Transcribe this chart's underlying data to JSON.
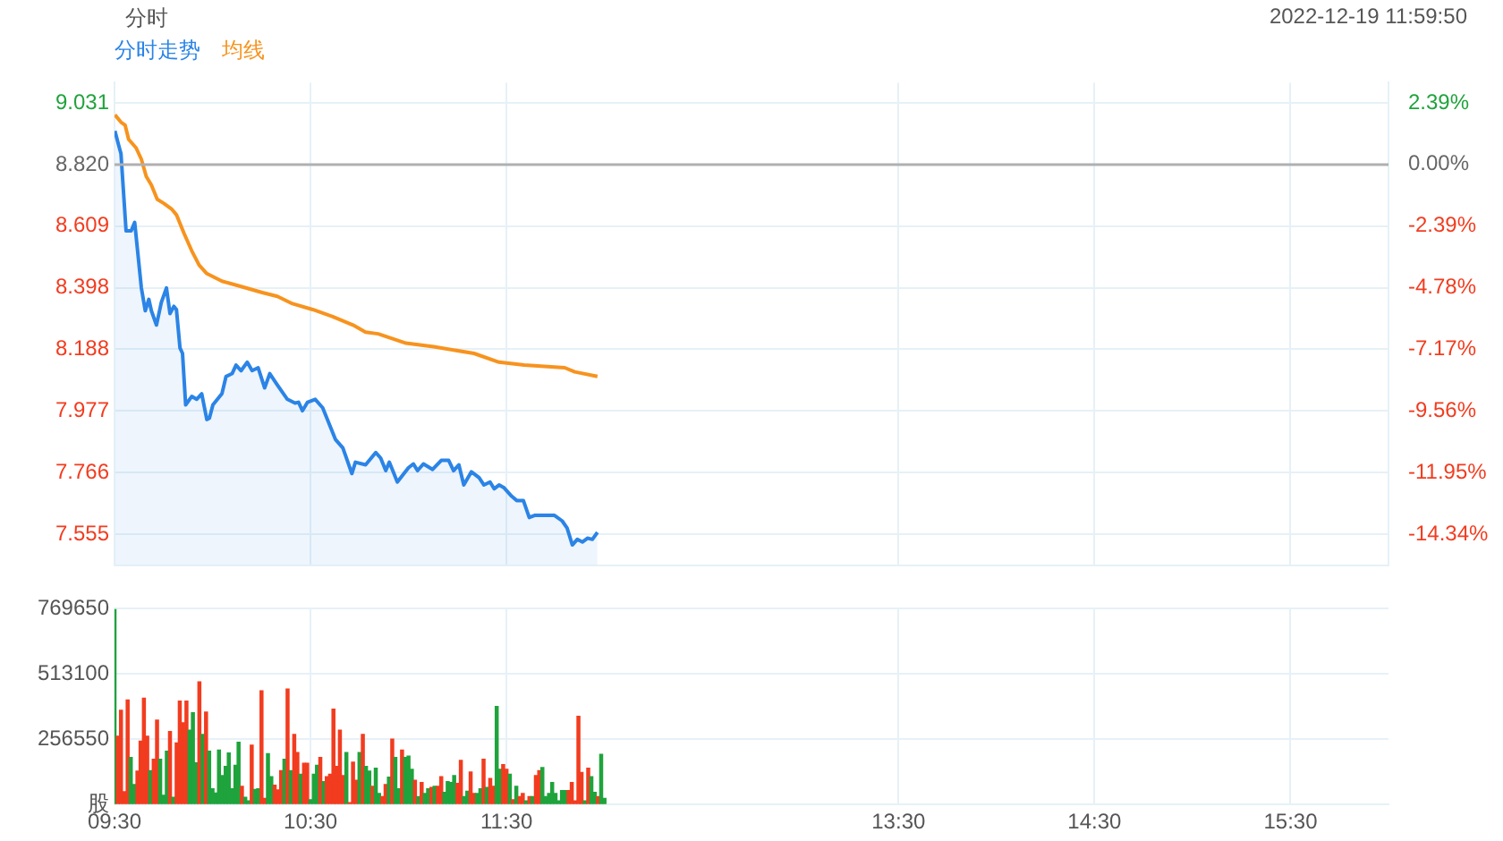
{
  "chart_data": [
    {
      "type": "line",
      "title": "分时",
      "annotations": [
        "2022-12-19 11:59:50"
      ],
      "legend": "top left",
      "grid": true,
      "tick_labels": "y",
      "xlim": [
        9.5,
        16
      ],
      "xticks": [
        {
          "value": 9.5,
          "label": null
        },
        {
          "value": 10.5,
          "label": null
        },
        {
          "value": 11.5,
          "label": null
        },
        {
          "value": 13.5,
          "label": null
        },
        {
          "value": 14.5,
          "label": null
        },
        {
          "value": 15.5,
          "label": null
        }
      ],
      "ylim": [
        7.45,
        9.1
      ],
      "yticks": [
        7.555,
        7.766,
        7.977,
        8.188,
        8.398,
        8.609,
        {
          "value": 8.82,
          "label": "8.820"
        },
        9.031
      ],
      "y2lim": [
        -15.53,
        3.17
      ],
      "y2ticks": [
        {
          "value": -14.34,
          "label": "-14.34%"
        },
        {
          "value": -11.95,
          "label": "-11.95%"
        },
        {
          "value": -9.56,
          "label": "-9.56%"
        },
        {
          "value": -7.17,
          "label": "-7.17%"
        },
        {
          "value": -4.78,
          "label": "-4.78%"
        },
        {
          "value": -2.39,
          "label": "-2.39%"
        },
        {
          "value": 0,
          "label": "0.00%"
        },
        {
          "value": 2.39,
          "label": "2.39%"
        }
      ],
      "ref_lines": [
        {
          "axis": "y",
          "value": 8.82,
          "color": "#b0b0b0"
        }
      ],
      "series": [
        {
          "name": "分时走势",
          "type": "area",
          "color": "#2b84e6",
          "x": [
            9.502,
            9.521,
            9.533,
            9.559,
            9.585,
            9.603,
            9.637,
            9.657,
            9.675,
            9.688,
            9.714,
            9.739,
            9.765,
            9.783,
            9.803,
            9.816,
            9.834,
            9.847,
            9.863,
            9.894,
            9.919,
            9.945,
            9.971,
            9.984,
            10.002,
            10.048,
            10.069,
            10.1,
            10.12,
            10.146,
            10.177,
            10.202,
            10.233,
            10.266,
            10.292,
            10.331,
            10.382,
            10.421,
            10.439,
            10.459,
            10.485,
            10.524,
            10.562,
            10.627,
            10.665,
            10.711,
            10.729,
            10.781,
            10.833,
            10.858,
            10.884,
            10.902,
            10.922,
            10.943,
            11.0,
            11.025,
            11.046,
            11.076,
            11.123,
            11.167,
            11.205,
            11.23,
            11.257,
            11.282,
            11.321,
            11.36,
            11.385,
            11.416,
            11.437,
            11.462,
            11.488,
            11.527,
            11.552,
            11.586,
            11.616,
            11.643,
            11.745,
            11.784,
            11.809,
            11.836,
            11.861,
            11.887,
            11.913,
            11.938,
            11.964
          ],
          "values": [
            8.935,
            8.886,
            8.857,
            8.593,
            8.593,
            8.622,
            8.398,
            8.32,
            8.359,
            8.32,
            8.271,
            8.349,
            8.398,
            8.31,
            8.335,
            8.324,
            8.193,
            8.174,
            7.998,
            8.027,
            8.017,
            8.036,
            7.948,
            7.952,
            7.998,
            8.036,
            8.095,
            8.105,
            8.134,
            8.115,
            8.144,
            8.115,
            8.125,
            8.056,
            8.105,
            8.066,
            8.017,
            8.004,
            8.007,
            7.978,
            8.007,
            8.017,
            7.988,
            7.88,
            7.851,
            7.763,
            7.802,
            7.793,
            7.835,
            7.816,
            7.773,
            7.802,
            7.769,
            7.734,
            7.783,
            7.796,
            7.773,
            7.796,
            7.777,
            7.808,
            7.808,
            7.773,
            7.793,
            7.724,
            7.769,
            7.749,
            7.724,
            7.734,
            7.711,
            7.724,
            7.714,
            7.685,
            7.671,
            7.671,
            7.613,
            7.62,
            7.62,
            7.601,
            7.577,
            7.519,
            7.538,
            7.529,
            7.542,
            7.538,
            7.562
          ]
        },
        {
          "name": "均线",
          "type": "line",
          "color": "#f7931e",
          "x": [
            9.502,
            9.533,
            9.554,
            9.572,
            9.61,
            9.637,
            9.662,
            9.688,
            9.718,
            9.752,
            9.791,
            9.816,
            9.855,
            9.894,
            9.932,
            9.971,
            10.048,
            10.15,
            10.254,
            10.331,
            10.408,
            10.511,
            10.613,
            10.717,
            10.781,
            10.845,
            10.987,
            11.128,
            11.334,
            11.462,
            11.59,
            11.797,
            11.848,
            11.964
          ],
          "values": [
            8.99,
            8.965,
            8.955,
            8.906,
            8.877,
            8.838,
            8.779,
            8.75,
            8.701,
            8.687,
            8.668,
            8.648,
            8.584,
            8.525,
            8.476,
            8.447,
            8.421,
            8.402,
            8.382,
            8.369,
            8.344,
            8.324,
            8.3,
            8.271,
            8.247,
            8.241,
            8.209,
            8.197,
            8.174,
            8.144,
            8.134,
            8.125,
            8.111,
            8.095
          ]
        }
      ]
    },
    {
      "type": "bar",
      "grid": true,
      "xlim": [
        9.5,
        16
      ],
      "xticks": [
        {
          "value": 9.5,
          "label": "09:30"
        },
        {
          "value": 10.5,
          "label": "10:30"
        },
        {
          "value": 11.5,
          "label": "11:30"
        },
        {
          "value": 13.5,
          "label": "13:30"
        },
        {
          "value": 14.5,
          "label": "14:30"
        },
        {
          "value": 15.5,
          "label": "15:30"
        }
      ],
      "ylim": [
        0,
        769650
      ],
      "yticks": [
        {
          "value": 0,
          "label": "股"
        },
        256550,
        513100,
        769650
      ],
      "x": [
        9.5,
        9.517,
        9.533,
        9.55,
        9.567,
        9.583,
        9.6,
        9.617,
        9.633,
        9.65,
        9.667,
        9.683,
        9.7,
        9.717,
        9.733,
        9.75,
        9.767,
        9.783,
        9.8,
        9.817,
        9.833,
        9.85,
        9.867,
        9.883,
        9.9,
        9.917,
        9.933,
        9.95,
        9.967,
        9.983,
        10,
        10.017,
        10.033,
        10.05,
        10.067,
        10.083,
        10.1,
        10.117,
        10.133,
        10.15,
        10.167,
        10.183,
        10.2,
        10.217,
        10.233,
        10.25,
        10.267,
        10.283,
        10.3,
        10.317,
        10.333,
        10.35,
        10.367,
        10.383,
        10.4,
        10.417,
        10.433,
        10.45,
        10.467,
        10.483,
        10.5,
        10.517,
        10.533,
        10.55,
        10.567,
        10.583,
        10.6,
        10.617,
        10.633,
        10.65,
        10.667,
        10.683,
        10.7,
        10.717,
        10.733,
        10.75,
        10.767,
        10.783,
        10.8,
        10.817,
        10.833,
        10.85,
        10.867,
        10.883,
        10.9,
        10.917,
        10.933,
        10.95,
        10.967,
        10.983,
        11,
        11.017,
        11.033,
        11.05,
        11.067,
        11.083,
        11.1,
        11.117,
        11.133,
        11.15,
        11.167,
        11.183,
        11.2,
        11.217,
        11.233,
        11.25,
        11.267,
        11.283,
        11.3,
        11.317,
        11.333,
        11.35,
        11.367,
        11.383,
        11.4,
        11.417,
        11.433,
        11.45,
        11.467,
        11.483,
        11.5,
        11.517,
        11.533,
        11.55,
        11.567,
        11.583,
        11.6,
        11.617,
        11.633,
        11.65,
        11.667,
        11.683,
        11.7,
        11.717,
        11.733,
        11.75,
        11.767,
        11.783,
        11.8,
        11.817,
        11.833,
        11.85,
        11.867,
        11.883,
        11.9,
        11.917,
        11.933,
        11.95,
        11.967,
        11.983,
        12
      ],
      "values": [
        767000,
        268000,
        370000,
        50000,
        411000,
        185000,
        78000,
        131000,
        249000,
        418000,
        268000,
        133000,
        178000,
        332000,
        178000,
        36000,
        209000,
        287000,
        28000,
        242000,
        406000,
        321000,
        406000,
        292000,
        361000,
        164000,
        482000,
        275000,
        363000,
        209000,
        62000,
        45000,
        214000,
        114000,
        150000,
        202000,
        62000,
        154000,
        245000,
        71000,
        28000,
        14000,
        233000,
        59000,
        62000,
        447000,
        24000,
        200000,
        109000,
        76000,
        57000,
        133000,
        178000,
        454000,
        133000,
        275000,
        204000,
        119000,
        162000,
        162000,
        19000,
        119000,
        154000,
        185000,
        90000,
        109000,
        119000,
        375000,
        150000,
        292000,
        114000,
        204000,
        7000,
        166000,
        95000,
        204000,
        275000,
        150000,
        131000,
        71000,
        143000,
        43000,
        31000,
        78000,
        107000,
        257000,
        185000,
        62000,
        214000,
        185000,
        190000,
        138000,
        95000,
        31000,
        86000,
        43000,
        62000,
        67000,
        71000,
        71000,
        109000,
        48000,
        90000,
        86000,
        114000,
        83000,
        173000,
        31000,
        52000,
        128000,
        43000,
        43000,
        62000,
        178000,
        67000,
        102000,
        71000,
        385000,
        138000,
        157000,
        138000,
        119000,
        19000,
        71000,
        31000,
        43000,
        14000,
        31000,
        31000,
        114000,
        133000,
        145000,
        31000,
        43000,
        86000,
        43000,
        14000,
        55000,
        55000,
        55000,
        86000,
        14000,
        347000,
        126000,
        14000,
        143000,
        109000,
        48000,
        31000,
        197000,
        24000
      ],
      "colors": [
        "#1fa33c",
        "#f23c1f",
        "#f23c1f",
        "#f23c1f",
        "#f23c1f",
        "#1fa33c",
        "#1fa33c",
        "#f23c1f",
        "#f23c1f",
        "#f23c1f",
        "#f23c1f",
        "#1fa33c",
        "#f23c1f",
        "#f23c1f",
        "#1fa33c",
        "#1fa33c",
        "#1fa33c",
        "#f23c1f",
        "#1fa33c",
        "#f23c1f",
        "#f23c1f",
        "#f23c1f",
        "#f23c1f",
        "#1fa33c",
        "#1fa33c",
        "#1fa33c",
        "#f23c1f",
        "#1fa33c",
        "#f23c1f",
        "#1fa33c",
        "#1fa33c",
        "#1fa33c",
        "#1fa33c",
        "#1fa33c",
        "#1fa33c",
        "#1fa33c",
        "#1fa33c",
        "#1fa33c",
        "#1fa33c",
        "#f23c1f",
        "#1fa33c",
        "#1fa33c",
        "#f23c1f",
        "#1fa33c",
        "#1fa33c",
        "#f23c1f",
        "#f23c1f",
        "#1fa33c",
        "#1fa33c",
        "#f23c1f",
        "#f23c1f",
        "#f23c1f",
        "#1fa33c",
        "#f23c1f",
        "#1fa33c",
        "#f23c1f",
        "#f23c1f",
        "#1fa33c",
        "#f23c1f",
        "#f23c1f",
        "#1fa33c",
        "#1fa33c",
        "#1fa33c",
        "#f23c1f",
        "#1fa33c",
        "#f23c1f",
        "#f23c1f",
        "#f23c1f",
        "#f23c1f",
        "#f23c1f",
        "#f23c1f",
        "#1fa33c",
        "#f23c1f",
        "#f23c1f",
        "#f23c1f",
        "#1fa33c",
        "#f23c1f",
        "#1fa33c",
        "#1fa33c",
        "#f23c1f",
        "#1fa33c",
        "#1fa33c",
        "#f23c1f",
        "#f23c1f",
        "#1fa33c",
        "#f23c1f",
        "#1fa33c",
        "#1fa33c",
        "#f23c1f",
        "#1fa33c",
        "#1fa33c",
        "#1fa33c",
        "#f23c1f",
        "#1fa33c",
        "#f23c1f",
        "#1fa33c",
        "#1fa33c",
        "#f23c1f",
        "#1fa33c",
        "#f23c1f",
        "#f23c1f",
        "#1fa33c",
        "#1fa33c",
        "#1fa33c",
        "#1fa33c",
        "#f23c1f",
        "#f23c1f",
        "#1fa33c",
        "#1fa33c",
        "#f23c1f",
        "#f23c1f",
        "#1fa33c",
        "#1fa33c",
        "#f23c1f",
        "#1fa33c",
        "#f23c1f",
        "#f23c1f",
        "#1fa33c",
        "#1fa33c",
        "#f23c1f",
        "#f23c1f",
        "#1fa33c",
        "#f23c1f",
        "#1fa33c",
        "#f23c1f",
        "#f23c1f",
        "#1fa33c",
        "#f23c1f",
        "#1fa33c",
        "#f23c1f",
        "#f23c1f",
        "#1fa33c",
        "#1fa33c",
        "#1fa33c",
        "#1fa33c",
        "#1fa33c",
        "#1fa33c",
        "#1fa33c",
        "#1fa33c",
        "#f23c1f",
        "#f23c1f",
        "#f23c1f",
        "#f23c1f",
        "#f23c1f",
        "#1fa33c",
        "#f23c1f",
        "#1fa33c",
        "#1fa33c",
        "#f23c1f",
        "#1fa33c",
        "#1fa33c"
      ]
    }
  ]
}
